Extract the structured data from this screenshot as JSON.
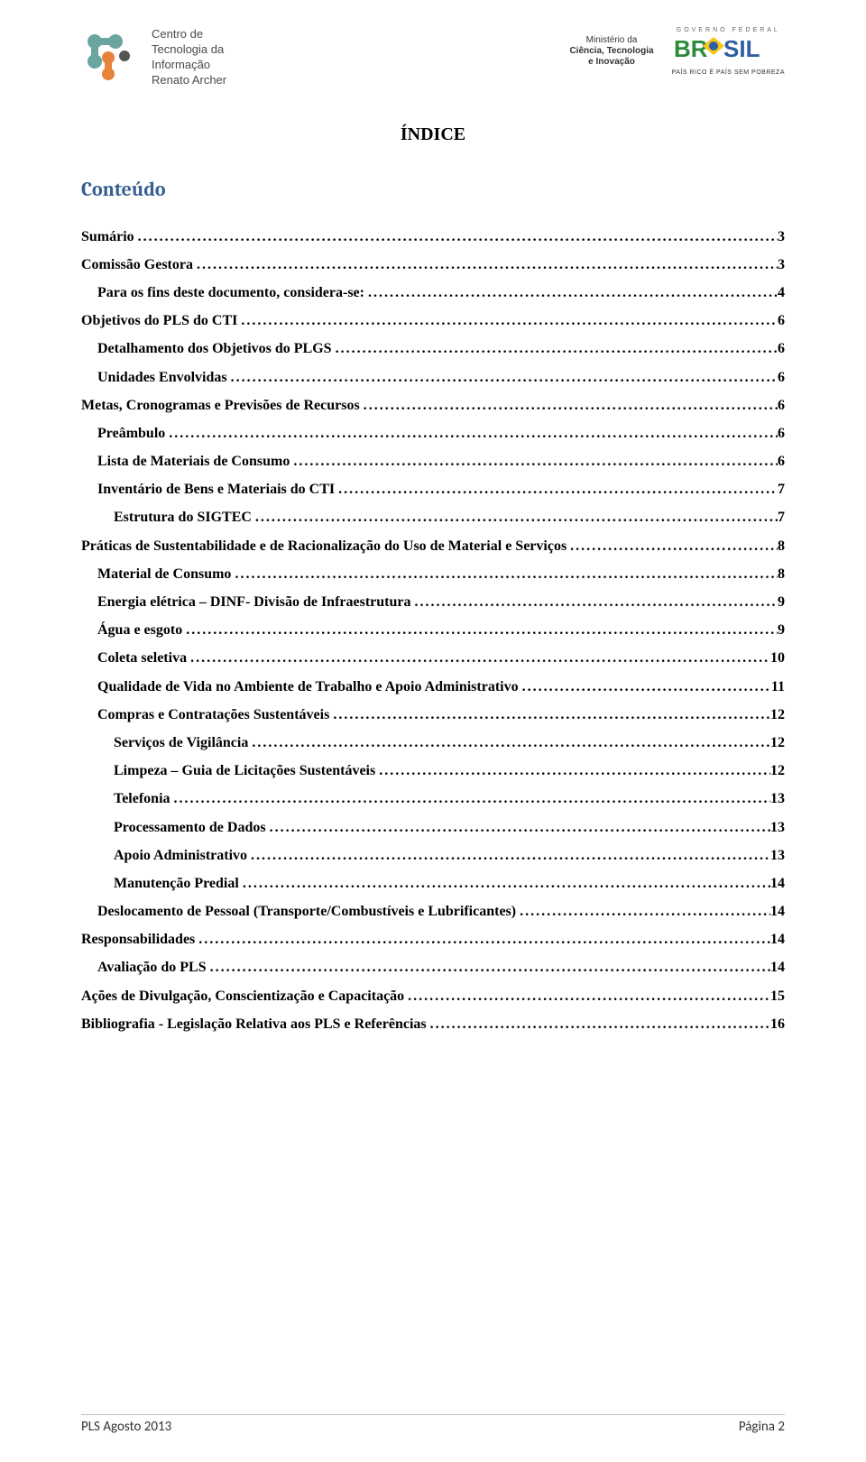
{
  "header": {
    "left_logo_text": "Centro de\nTecnologia da\nInformação\nRenato Archer",
    "ministry_line1": "Ministério da",
    "ministry_line2": "Ciência, Tecnologia\ne Inovação",
    "brasil_top": "GOVERNO FEDERAL",
    "brasil_sub": "PAÍS RICO É PAÍS SEM POBREZA"
  },
  "title": "ÍNDICE",
  "contents_heading": "Conteúdo",
  "toc": [
    {
      "label": "Sumário",
      "page": "3",
      "level": 0
    },
    {
      "label": "Comissão Gestora",
      "page": "3",
      "level": 0
    },
    {
      "label": "Para os fins deste documento, considera-se:",
      "page": "4",
      "level": 1
    },
    {
      "label": "Objetivos do PLS do CTI",
      "page": "6",
      "level": 0
    },
    {
      "label": "Detalhamento dos Objetivos do PLGS",
      "page": "6",
      "level": 1
    },
    {
      "label": "Unidades Envolvidas",
      "page": "6",
      "level": 1
    },
    {
      "label": "Metas, Cronogramas e Previsões de Recursos",
      "page": "6",
      "level": 0
    },
    {
      "label": "Preâmbulo",
      "page": "6",
      "level": 1
    },
    {
      "label": "Lista de Materiais de Consumo",
      "page": "6",
      "level": 1
    },
    {
      "label": "Inventário de Bens e Materiais do CTI",
      "page": "7",
      "level": 1
    },
    {
      "label": "Estrutura do SIGTEC",
      "page": "7",
      "level": 2
    },
    {
      "label": "Práticas de Sustentabilidade e de Racionalização do Uso de Material e Serviços",
      "page": "8",
      "level": 0
    },
    {
      "label": "Material de Consumo",
      "page": "8",
      "level": 1
    },
    {
      "label": "Energia elétrica – DINF- Divisão de Infraestrutura",
      "page": "9",
      "level": 1
    },
    {
      "label": "Água e esgoto",
      "page": "9",
      "level": 1
    },
    {
      "label": "Coleta seletiva",
      "page": "10",
      "level": 1
    },
    {
      "label": "Qualidade de Vida no Ambiente de Trabalho e Apoio Administrativo",
      "page": "11",
      "level": 1
    },
    {
      "label": "Compras e Contratações Sustentáveis",
      "page": "12",
      "level": 1
    },
    {
      "label": "Serviços de Vigilância",
      "page": "12",
      "level": 2
    },
    {
      "label": "Limpeza – Guia de Licitações Sustentáveis",
      "page": "12",
      "level": 2
    },
    {
      "label": "Telefonia",
      "page": "13",
      "level": 2
    },
    {
      "label": "Processamento de Dados",
      "page": "13",
      "level": 2
    },
    {
      "label": "Apoio Administrativo",
      "page": "13",
      "level": 2
    },
    {
      "label": "Manutenção Predial",
      "page": "14",
      "level": 2
    },
    {
      "label": "Deslocamento de Pessoal  (Transporte/Combustíveis e Lubrificantes)",
      "page": "14",
      "level": 1
    },
    {
      "label": "Responsabilidades",
      "page": "14",
      "level": 0
    },
    {
      "label": "Avaliação do PLS",
      "page": "14",
      "level": 1
    },
    {
      "label": "Ações de Divulgação, Conscientização e Capacitação",
      "page": "15",
      "level": 0
    },
    {
      "label": "Bibliografia - Legislação Relativa aos PLS e Referências",
      "page": "16",
      "level": 0
    }
  ],
  "footer": {
    "left": "PLS Agosto 2013",
    "right": "Página 2"
  },
  "colors": {
    "heading_blue": "#365f91",
    "logo_teal": "#6ba5a0",
    "logo_orange": "#e8833a",
    "brasil_green": "#2a8a3a",
    "brasil_yellow": "#f5c518",
    "brasil_blue": "#2e5fa3",
    "footer_border": "#bfbfbf"
  }
}
